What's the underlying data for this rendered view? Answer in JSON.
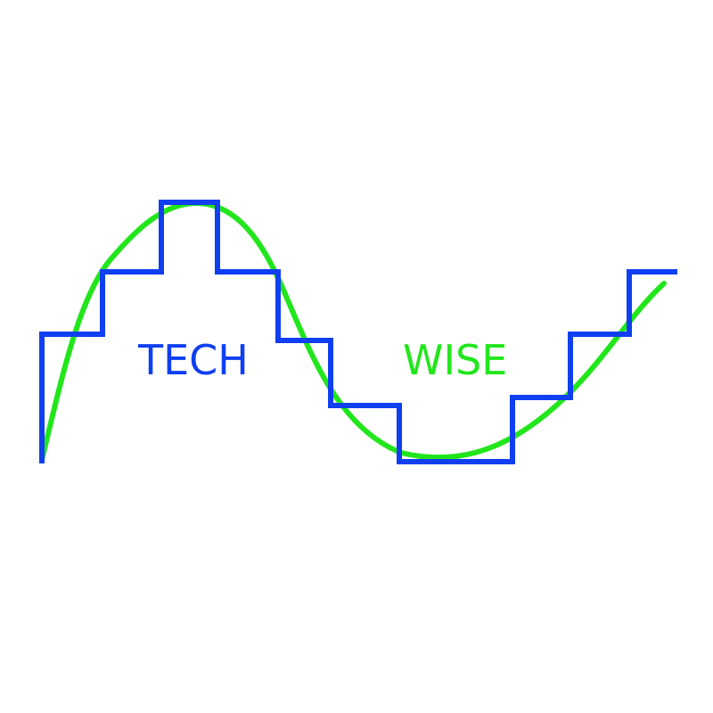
{
  "logo": {
    "word_left": "TECH",
    "word_right": "WISE",
    "colors": {
      "background": "#ffffff",
      "step_wave": "#0f3ff0",
      "sine_wave": "#22e61c",
      "word_left": "#0f3ff0",
      "word_right": "#22e61c"
    }
  }
}
